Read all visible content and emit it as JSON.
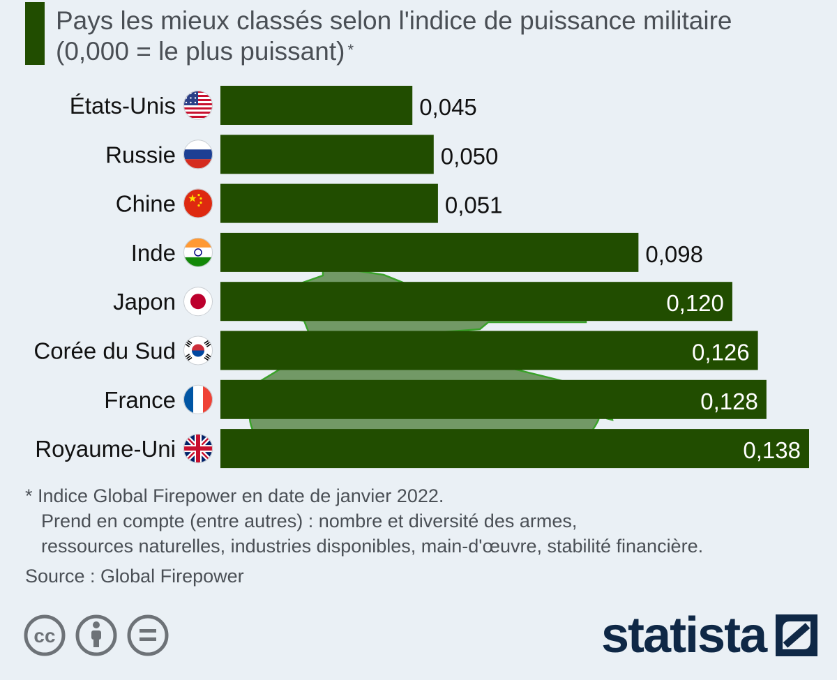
{
  "title": "Pays les mieux classés selon l'indice de puissance militaire (0,000 = le plus puissant)",
  "title_marker": "*",
  "colors": {
    "bar": "#214d00",
    "tank": "#5d8a4c",
    "tank_outline": "#3aa22a",
    "label_dark": "#111111",
    "label_light": "#ffffff",
    "background": "#eaf0f5"
  },
  "chart_data": {
    "type": "bar",
    "orientation": "horizontal",
    "categories": [
      "États-Unis",
      "Russie",
      "Chine",
      "Inde",
      "Japon",
      "Corée du Sud",
      "France",
      "Royaume-Uni"
    ],
    "flags": [
      "us-flag-icon",
      "russia-flag-icon",
      "china-flag-icon",
      "india-flag-icon",
      "japan-flag-icon",
      "south-korea-flag-icon",
      "france-flag-icon",
      "uk-flag-icon"
    ],
    "values": [
      0.045,
      0.05,
      0.051,
      0.098,
      0.12,
      0.126,
      0.128,
      0.138
    ],
    "value_labels": [
      "0,045",
      "0,050",
      "0,051",
      "0,098",
      "0,120",
      "0,126",
      "0,128",
      "0,138"
    ],
    "xlim": [
      0,
      0.138
    ],
    "grid": false,
    "legend": "none"
  },
  "footnote": {
    "line1": "* Indice Global Firepower en date de janvier 2022.",
    "line2": "Prend en compte (entre autres) : nombre et diversité des armes,",
    "line3": "ressources naturelles, industries disponibles, main-d'œuvre, stabilité financière."
  },
  "source": "Source : Global Firepower",
  "license_icons": [
    "cc-icon",
    "attribution-icon",
    "no-derivatives-icon"
  ],
  "brand": {
    "name": "statista",
    "icon": "statista-logo-icon"
  }
}
